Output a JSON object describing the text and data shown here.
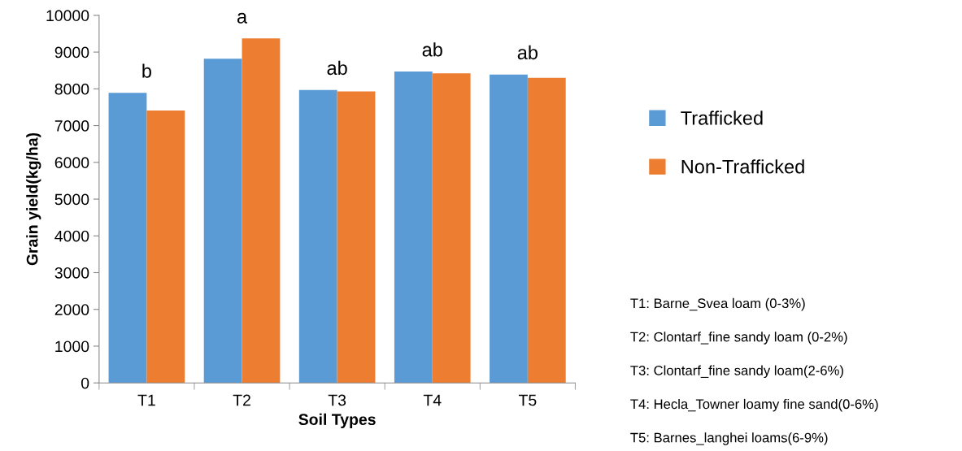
{
  "chart_data": {
    "type": "bar",
    "xlabel": "Soil Types",
    "ylabel": "Grain yield(kg/ha)",
    "categories": [
      "T1",
      "T2",
      "T3",
      "T4",
      "T5"
    ],
    "series": [
      {
        "name": "Trafficked",
        "color": "#5b9bd5",
        "values": [
          7890,
          8820,
          7970,
          8470,
          8390
        ]
      },
      {
        "name": "Non-Trafficked",
        "color": "#ed7d31",
        "values": [
          7410,
          9370,
          7930,
          8420,
          8300
        ]
      }
    ],
    "ylim": [
      0,
      10000
    ],
    "yticks": [
      0,
      1000,
      2000,
      3000,
      4000,
      5000,
      6000,
      7000,
      8000,
      9000,
      10000
    ],
    "grid": false,
    "legend": "right",
    "annotations": [
      {
        "text": "b",
        "x": "T1",
        "y": 7890
      },
      {
        "text": "a",
        "x": "T2",
        "y": 9370
      },
      {
        "text": "ab",
        "x": "T3",
        "y": 7970
      },
      {
        "text": "ab",
        "x": "T4",
        "y": 8470
      },
      {
        "text": "ab",
        "x": "T5",
        "y": 8390
      },
      "T1: Barne_Svea loam (0-3%)",
      "T2: Clontarf_fine sandy loam (0-2%)",
      "T3: Clontarf_fine sandy loam(2-6%)",
      "T4: Hecla_Towner loamy fine sand(0-6%)",
      "T5: Barnes_langhei loams(6-9%)"
    ]
  }
}
